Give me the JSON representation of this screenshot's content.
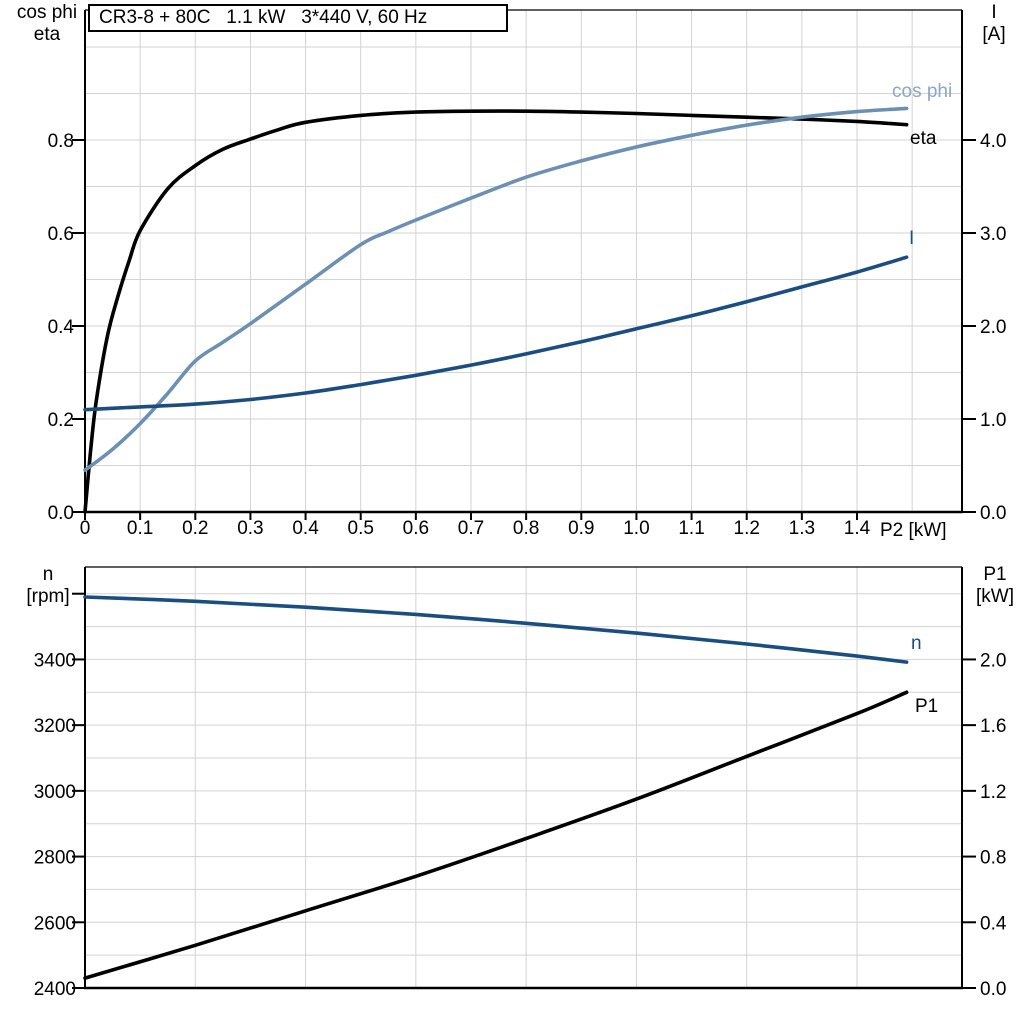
{
  "title_box": "CR3-8 + 80C   1.1 kW   3*440 V, 60 Hz",
  "colors": {
    "black": "#000000",
    "dark_blue": "#1a4e82",
    "light_blue": "#6b90b3",
    "light_blue_label": "#8ba7c6",
    "grid": "#d3d3d3"
  },
  "labels": {
    "top_left_1": "cos phi",
    "top_left_2": "eta",
    "top_right_1": "I",
    "top_right_2": "[A]",
    "x_unit": "P2 [kW]",
    "bottom_left_1": "n",
    "bottom_left_2": "[rpm]",
    "bottom_right_1": "P1",
    "bottom_right_2": "[kW]",
    "curve_cos_phi": "cos phi",
    "curve_eta": "eta",
    "curve_I": "I",
    "curve_n": "n",
    "curve_P1": "P1"
  },
  "chart_data": [
    {
      "type": "line",
      "title": "CR3-8 + 80C   1.1 kW   3*440 V, 60 Hz",
      "xlabel": "P2 [kW]",
      "x_axis": {
        "min": 0,
        "max": 1.59,
        "grid_step": 0.1,
        "tick_values": [
          0,
          0.1,
          0.2,
          0.3,
          0.4,
          0.5,
          0.6,
          0.7,
          0.8,
          0.9,
          1.0,
          1.1,
          1.2,
          1.3,
          1.4
        ],
        "tick_labels": [
          "0",
          "0.1",
          "0.2",
          "0.3",
          "0.4",
          "0.5",
          "0.6",
          "0.7",
          "0.8",
          "0.9",
          "1.0",
          "1.1",
          "1.2",
          "1.3",
          "1.4"
        ]
      },
      "y_left": {
        "label": "cos phi / eta",
        "min": 0,
        "max": 1.08,
        "grid_step": 0.1,
        "tick_values": [
          0,
          0.2,
          0.4,
          0.6,
          0.8
        ],
        "tick_labels": [
          "0.0",
          "0.2",
          "0.4",
          "0.6",
          "0.8"
        ]
      },
      "y_right": {
        "label": "I [A]",
        "min": 0,
        "max": 5.4,
        "tick_values": [
          0,
          1,
          2,
          3,
          4
        ],
        "tick_labels": [
          "0.0",
          "1.0",
          "2.0",
          "3.0",
          "4.0"
        ]
      },
      "legend_position": "end-of-curve",
      "grid": true,
      "series": [
        {
          "name": "eta",
          "axis": "left",
          "color_key": "black",
          "points": [
            [
              0,
              0
            ],
            [
              0.01,
              0.13
            ],
            [
              0.02,
              0.235
            ],
            [
              0.04,
              0.375
            ],
            [
              0.06,
              0.465
            ],
            [
              0.08,
              0.54
            ],
            [
              0.1,
              0.605
            ],
            [
              0.15,
              0.695
            ],
            [
              0.2,
              0.745
            ],
            [
              0.25,
              0.78
            ],
            [
              0.3,
              0.802
            ],
            [
              0.35,
              0.822
            ],
            [
              0.4,
              0.838
            ],
            [
              0.5,
              0.853
            ],
            [
              0.6,
              0.86
            ],
            [
              0.7,
              0.862
            ],
            [
              0.8,
              0.862
            ],
            [
              0.9,
              0.86
            ],
            [
              1.0,
              0.857
            ],
            [
              1.1,
              0.853
            ],
            [
              1.2,
              0.849
            ],
            [
              1.3,
              0.845
            ],
            [
              1.4,
              0.84
            ],
            [
              1.49,
              0.833
            ]
          ]
        },
        {
          "name": "cos phi",
          "axis": "left",
          "color_key": "light_blue",
          "points": [
            [
              0,
              0.09
            ],
            [
              0.05,
              0.135
            ],
            [
              0.1,
              0.19
            ],
            [
              0.15,
              0.255
            ],
            [
              0.2,
              0.325
            ],
            [
              0.25,
              0.365
            ],
            [
              0.3,
              0.405
            ],
            [
              0.4,
              0.49
            ],
            [
              0.5,
              0.575
            ],
            [
              0.55,
              0.603
            ],
            [
              0.6,
              0.628
            ],
            [
              0.7,
              0.675
            ],
            [
              0.8,
              0.72
            ],
            [
              0.9,
              0.755
            ],
            [
              1.0,
              0.785
            ],
            [
              1.1,
              0.81
            ],
            [
              1.2,
              0.832
            ],
            [
              1.3,
              0.849
            ],
            [
              1.4,
              0.861
            ],
            [
              1.49,
              0.868
            ]
          ]
        },
        {
          "name": "I",
          "axis": "right",
          "color_key": "dark_blue",
          "points": [
            [
              0,
              1.1
            ],
            [
              0.1,
              1.13
            ],
            [
              0.2,
              1.16
            ],
            [
              0.3,
              1.21
            ],
            [
              0.4,
              1.28
            ],
            [
              0.5,
              1.37
            ],
            [
              0.6,
              1.47
            ],
            [
              0.7,
              1.58
            ],
            [
              0.8,
              1.7
            ],
            [
              0.9,
              1.83
            ],
            [
              1.0,
              1.97
            ],
            [
              1.1,
              2.11
            ],
            [
              1.2,
              2.26
            ],
            [
              1.3,
              2.42
            ],
            [
              1.4,
              2.58
            ],
            [
              1.49,
              2.74
            ]
          ]
        }
      ]
    },
    {
      "type": "line",
      "title": "",
      "xlabel": "",
      "x_axis": {
        "min": 0,
        "max": 1.59,
        "grid_step": 0.2,
        "tick_values": [],
        "tick_labels": []
      },
      "y_left": {
        "label": "n [rpm]",
        "min": 2400,
        "max": 3681,
        "grid_step": 100,
        "tick_values": [
          2400,
          2600,
          2800,
          3000,
          3200,
          3400
        ],
        "tick_labels": [
          "2400",
          "2600",
          "2800",
          "3000",
          "3200",
          "3400"
        ]
      },
      "y_right": {
        "label": "P1 [kW]",
        "min": 0,
        "max": 2.56,
        "tick_values": [
          0,
          0.4,
          0.8,
          1.2,
          1.6,
          2.0
        ],
        "tick_labels": [
          "0.0",
          "0.4",
          "0.8",
          "1.2",
          "1.6",
          "2.0"
        ]
      },
      "legend_position": "end-of-curve",
      "grid": true,
      "series": [
        {
          "name": "n",
          "axis": "left",
          "color_key": "dark_blue",
          "points": [
            [
              0,
              3590
            ],
            [
              0.2,
              3577
            ],
            [
              0.4,
              3559
            ],
            [
              0.6,
              3537
            ],
            [
              0.8,
              3510
            ],
            [
              1.0,
              3480
            ],
            [
              1.2,
              3447
            ],
            [
              1.4,
              3410
            ],
            [
              1.49,
              3392
            ]
          ]
        },
        {
          "name": "P1",
          "axis": "right",
          "color_key": "black",
          "points": [
            [
              0,
              0.06
            ],
            [
              0.2,
              0.26
            ],
            [
              0.4,
              0.47
            ],
            [
              0.6,
              0.68
            ],
            [
              0.8,
              0.91
            ],
            [
              1.0,
              1.15
            ],
            [
              1.2,
              1.41
            ],
            [
              1.4,
              1.67
            ],
            [
              1.49,
              1.8
            ]
          ]
        }
      ]
    }
  ]
}
